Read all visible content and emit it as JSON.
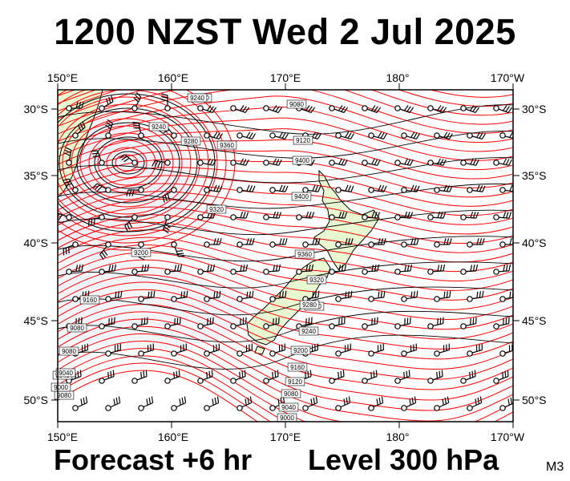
{
  "header": {
    "title": "1200 NZST Wed 2 Jul 2025"
  },
  "footer": {
    "forecast": "Forecast +6 hr",
    "level": "Level 300 hPa",
    "code": "M3"
  },
  "map": {
    "lon_labels": [
      "150°E",
      "160°E",
      "170°E",
      "180°",
      "170°W"
    ],
    "lat_labels": [
      "30°S",
      "35°S",
      "40°S",
      "45°S",
      "50°S"
    ],
    "contour_labels": [
      "9000",
      "9040",
      "9080",
      "9120",
      "9160",
      "9200",
      "9240",
      "9280",
      "9320",
      "9360",
      "9400",
      "9080",
      "9040",
      "9080",
      "9160",
      "9200",
      "9240",
      "9280",
      "9320",
      "9360",
      "9400",
      "9080",
      "9120",
      "9400",
      "9240",
      "9080",
      "9000",
      "9040",
      "9280"
    ],
    "colors": {
      "contour": "#ff0000",
      "height": "#000000",
      "land": "#e8f8d0",
      "low": "#f2f2fa",
      "coast": "#000000"
    }
  }
}
